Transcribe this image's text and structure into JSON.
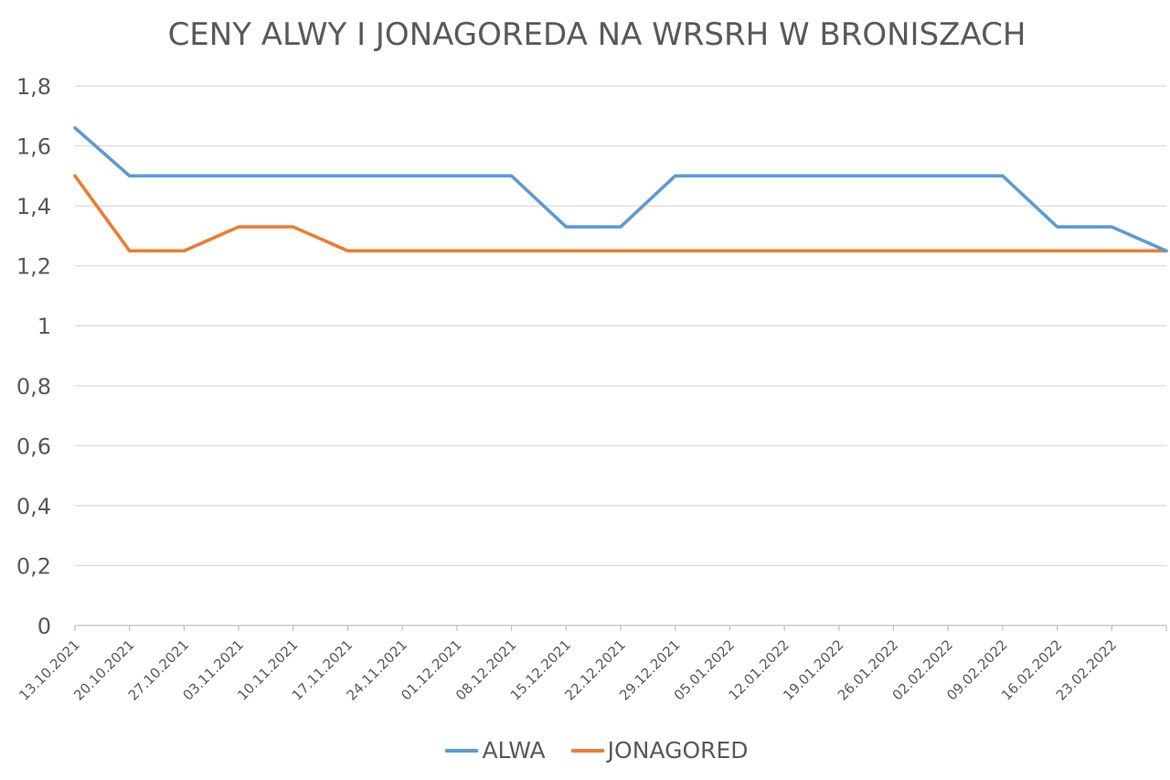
{
  "chart_data": {
    "type": "line",
    "title": "CENY ALWY I JONAGOREDA NA WRSRH W BRONISZACH",
    "xlabel": "",
    "ylabel": "",
    "ylim": [
      0,
      1.8
    ],
    "yticks": [
      0,
      0.2,
      0.4,
      0.6,
      0.8,
      1,
      1.2,
      1.4,
      1.6,
      1.8
    ],
    "ytick_labels": [
      "0",
      "0,2",
      "0,4",
      "0,6",
      "0,8",
      "1",
      "1,2",
      "1,4",
      "1,6",
      "1,8"
    ],
    "grid": true,
    "legend_position": "bottom",
    "categories": [
      "13.10.2021",
      "20.10.2021",
      "27.10.2021",
      "03.11.2021",
      "10.11.2021",
      "17.11.2021",
      "24.11.2021",
      "01.12.2021",
      "08.12.2021",
      "15.12.2021",
      "22.12.2021",
      "29.12.2021",
      "05.01.2022",
      "12.01.2022",
      "19.01.2022",
      "26.01.2022",
      "02.02.2022",
      "09.02.2022",
      "16.02.2022",
      "23.02.2022",
      ""
    ],
    "series": [
      {
        "name": "ALWA",
        "color": "#5B9BD5",
        "values": [
          1.66,
          1.5,
          1.5,
          1.5,
          1.5,
          1.5,
          1.5,
          1.5,
          1.5,
          1.33,
          1.33,
          1.5,
          1.5,
          1.5,
          1.5,
          1.5,
          1.5,
          1.5,
          1.33,
          1.33,
          1.25
        ]
      },
      {
        "name": "JONAGORED",
        "color": "#ED7D31",
        "values": [
          1.5,
          1.25,
          1.25,
          1.33,
          1.33,
          1.25,
          1.25,
          1.25,
          1.25,
          1.25,
          1.25,
          1.25,
          1.25,
          1.25,
          1.25,
          1.25,
          1.25,
          1.25,
          1.25,
          1.25,
          1.25
        ]
      }
    ]
  },
  "colors": {
    "grid": "#D9D9D9",
    "axis": "#BFBFBF",
    "text": "#595959"
  }
}
